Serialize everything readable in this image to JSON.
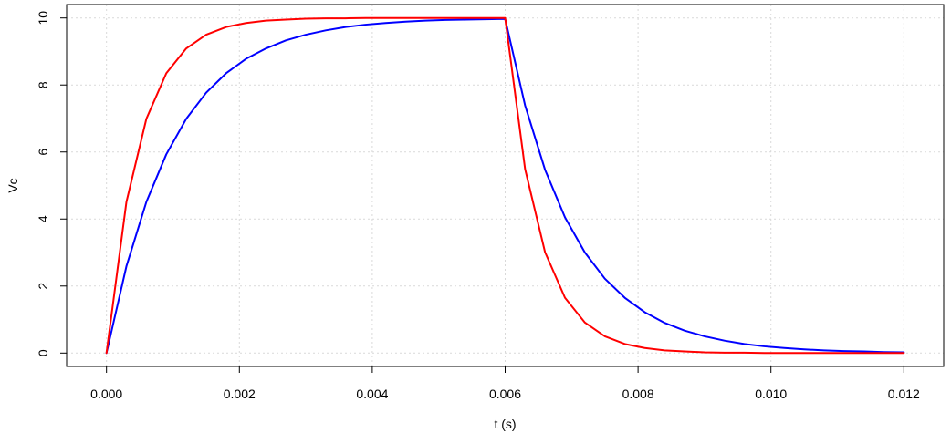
{
  "chart_data": {
    "type": "line",
    "title": "",
    "xlabel": "t (s)",
    "ylabel": "Vc",
    "xlim": [
      -0.0006,
      0.0126
    ],
    "ylim": [
      -0.4,
      10.4
    ],
    "xticks": [
      0.0,
      0.002,
      0.004,
      0.006,
      0.008,
      0.01,
      0.012
    ],
    "xtick_labels": [
      "0.000",
      "0.002",
      "0.004",
      "0.006",
      "0.008",
      "0.010",
      "0.012"
    ],
    "yticks": [
      0,
      2,
      4,
      6,
      8,
      10
    ],
    "ytick_labels": [
      "0",
      "2",
      "4",
      "6",
      "8",
      "10"
    ],
    "grid": true,
    "legend": "none",
    "colors": {
      "grid": "#d9d9d9",
      "axis": "#000000"
    },
    "series": [
      {
        "color": "#0000ff",
        "x": [
          0.0,
          0.0003,
          0.0006,
          0.0009,
          0.0012,
          0.0015,
          0.0018,
          0.0021,
          0.0024,
          0.0027,
          0.003,
          0.0033,
          0.0036,
          0.0039,
          0.0042,
          0.0045,
          0.0048,
          0.0051,
          0.0054,
          0.0057,
          0.006,
          0.0063,
          0.0066,
          0.0069,
          0.0072,
          0.0075,
          0.0078,
          0.0081,
          0.0084,
          0.0087,
          0.009,
          0.0093,
          0.0096,
          0.0099,
          0.0102,
          0.0105,
          0.0108,
          0.0111,
          0.0114,
          0.0117,
          0.012
        ],
        "y": [
          0.0,
          2.59,
          4.51,
          5.93,
          6.99,
          7.77,
          8.35,
          8.78,
          9.09,
          9.33,
          9.5,
          9.63,
          9.73,
          9.8,
          9.85,
          9.89,
          9.92,
          9.94,
          9.95,
          9.96,
          9.97,
          7.39,
          5.47,
          4.05,
          3.0,
          2.22,
          1.65,
          1.22,
          0.9,
          0.67,
          0.5,
          0.37,
          0.27,
          0.2,
          0.15,
          0.11,
          0.08,
          0.06,
          0.05,
          0.03,
          0.02
        ]
      },
      {
        "color": "#ff0000",
        "x": [
          0.0,
          0.0003,
          0.0006,
          0.0009,
          0.0012,
          0.0015,
          0.0018,
          0.0021,
          0.0024,
          0.0027,
          0.003,
          0.0033,
          0.0036,
          0.0039,
          0.0042,
          0.0045,
          0.0048,
          0.0051,
          0.0054,
          0.0057,
          0.006,
          0.0063,
          0.0066,
          0.0069,
          0.0072,
          0.0075,
          0.0078,
          0.0081,
          0.0084,
          0.0087,
          0.009,
          0.0093,
          0.0096,
          0.0099,
          0.0102,
          0.0105,
          0.0108,
          0.0111,
          0.0114,
          0.0117,
          0.012
        ],
        "y": [
          0.0,
          4.51,
          6.99,
          8.35,
          9.09,
          9.5,
          9.73,
          9.85,
          9.92,
          9.95,
          9.98,
          9.99,
          9.99,
          10.0,
          10.0,
          10.0,
          10.0,
          10.0,
          10.0,
          10.0,
          10.0,
          5.49,
          3.01,
          1.65,
          0.91,
          0.5,
          0.27,
          0.15,
          0.08,
          0.05,
          0.02,
          0.01,
          0.01,
          0.0,
          0.0,
          0.0,
          0.0,
          0.0,
          0.0,
          0.0,
          0.0
        ]
      }
    ]
  }
}
